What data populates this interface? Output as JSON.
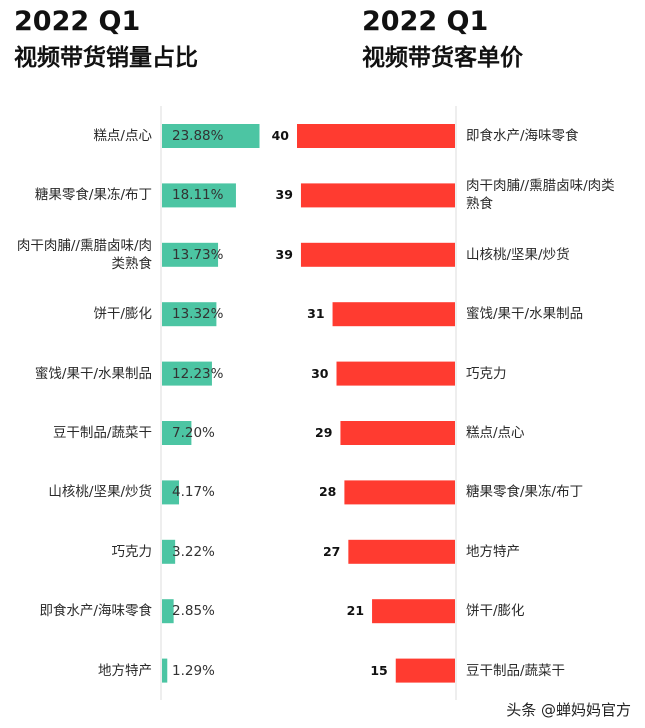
{
  "left_title": {
    "line1": "2022 Q1",
    "line2": "视频带货销量占比"
  },
  "right_title": {
    "line1": "2022 Q1",
    "line2": "视频带货客单价"
  },
  "colors": {
    "left_bar": "#4cc5a3",
    "right_bar": "#ff3b30",
    "axis": "#dddddd"
  },
  "watermark": "头条 @蝉妈妈官方",
  "chart_data": [
    {
      "type": "bar",
      "orientation": "horizontal",
      "title": "2022 Q1 视频带货销量占比",
      "unit": "%",
      "categories": [
        "糕点/点心",
        "糖果零食/果冻/布丁",
        "肉干肉脯//熏腊卤味/肉类熟食",
        "饼干/膨化",
        "蜜饯/果干/水果制品",
        "豆干制品/蔬菜干",
        "山核桃/坚果/炒货",
        "巧克力",
        "即食水产/海味零食",
        "地方特产"
      ],
      "values": [
        23.88,
        18.11,
        13.73,
        13.32,
        12.23,
        7.2,
        4.17,
        3.22,
        2.85,
        1.29
      ],
      "value_labels": [
        "23.88%",
        "18.11%",
        "13.73%",
        "13.32%",
        "12.23%",
        "7.20%",
        "4.17%",
        "3.22%",
        "2.85%",
        "1.29%"
      ],
      "xlim": [
        0,
        24
      ]
    },
    {
      "type": "bar",
      "orientation": "horizontal",
      "title": "2022 Q1 视频带货客单价",
      "categories": [
        "即食水产/海味零食",
        "肉干肉脯//熏腊卤味/肉类熟食",
        "山核桃/坚果/炒货",
        "蜜饯/果干/水果制品",
        "巧克力",
        "糕点/点心",
        "糖果零食/果冻/布丁",
        "地方特产",
        "饼干/膨化",
        "豆干制品/蔬菜干"
      ],
      "values": [
        40,
        39,
        39,
        31,
        30,
        29,
        28,
        27,
        21,
        15
      ],
      "value_labels": [
        "40",
        "39",
        "39",
        "31",
        "30",
        "29",
        "28",
        "27",
        "21",
        "15"
      ],
      "xlim": [
        0,
        40
      ],
      "direction": "right-to-left"
    }
  ]
}
